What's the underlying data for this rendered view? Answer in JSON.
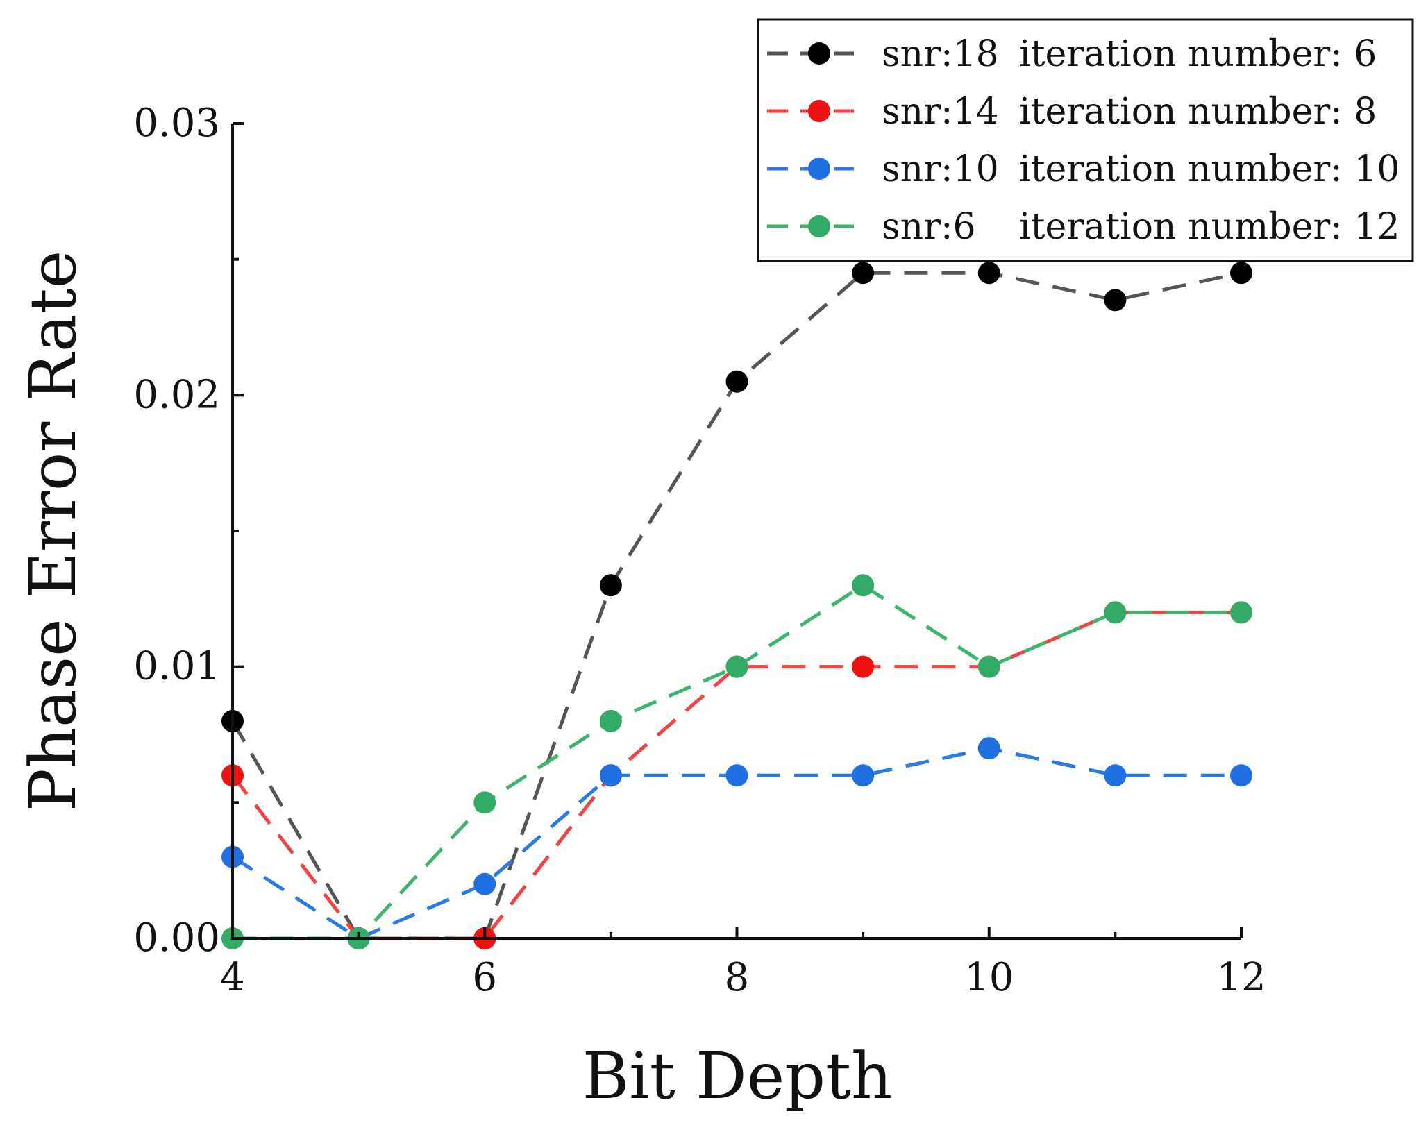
{
  "chart_data": {
    "type": "line",
    "title": "",
    "xlabel": "Bit Depth",
    "ylabel": "Phase Error Rate",
    "xlim": [
      4,
      12
    ],
    "ylim": [
      0,
      0.03
    ],
    "xticks": [
      4,
      6,
      8,
      10,
      12
    ],
    "xtick_labels": [
      "4",
      "6",
      "8",
      "10",
      "12"
    ],
    "yticks": [
      0,
      0.01,
      0.02,
      0.03
    ],
    "ytick_labels": [
      "0.00",
      "0.01",
      "0.02",
      "0.03"
    ],
    "legend_position": "top-right",
    "x": [
      4,
      5,
      6,
      7,
      8,
      9,
      10,
      11,
      12
    ],
    "series": [
      {
        "snr_label": "snr:18",
        "iter_label": "iteration number: 6",
        "color": "#000000",
        "line_color": "#555555",
        "values": [
          0.008,
          0.0,
          0.0,
          0.013,
          0.0205,
          0.0245,
          0.0245,
          0.0235,
          0.0245
        ]
      },
      {
        "snr_label": "snr:14",
        "iter_label": "iteration number: 8",
        "color": "#ee1111",
        "line_color": "#ee4444",
        "values": [
          0.006,
          0.0,
          0.0,
          0.006,
          0.01,
          0.01,
          0.01,
          0.012,
          0.012
        ]
      },
      {
        "snr_label": "snr:10",
        "iter_label": "iteration number: 10",
        "color": "#1f6fe0",
        "line_color": "#2a7be8",
        "values": [
          0.003,
          0.0,
          0.002,
          0.006,
          0.006,
          0.006,
          0.007,
          0.006,
          0.006
        ]
      },
      {
        "snr_label": "snr:6",
        "iter_label": "iteration number: 12",
        "color": "#33aa66",
        "line_color": "#3db56e",
        "values": [
          0.0,
          0.0,
          0.005,
          0.008,
          0.01,
          0.013,
          0.01,
          0.012,
          0.012
        ]
      }
    ]
  }
}
